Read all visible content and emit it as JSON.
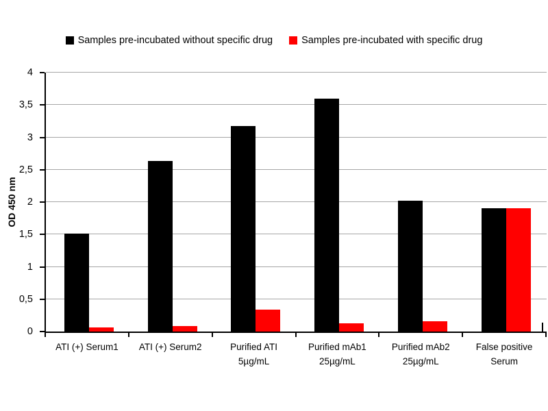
{
  "chart_data": {
    "type": "bar",
    "title": "",
    "xlabel": "",
    "ylabel": "OD 450 nm",
    "ylim": [
      0,
      4
    ],
    "grid": true,
    "legend_position": "top-center",
    "axis_color": "#000000",
    "gridline_color": "#a6a6a6",
    "background_color": "#ffffff",
    "y_ticks": [
      {
        "v": 0,
        "label": "0"
      },
      {
        "v": 0.5,
        "label": "0,5"
      },
      {
        "v": 1,
        "label": "1"
      },
      {
        "v": 1.5,
        "label": "1,5"
      },
      {
        "v": 2,
        "label": "2"
      },
      {
        "v": 2.5,
        "label": "2,5"
      },
      {
        "v": 3,
        "label": "3"
      },
      {
        "v": 3.5,
        "label": "3,5"
      },
      {
        "v": 4,
        "label": "4"
      }
    ],
    "categories": [
      "ATI (+) Serum1",
      "ATI (+) Serum2",
      "Purified ATI\n5µg/mL",
      "Purified mAb1\n25µg/mL",
      "Purified mAb2\n25µg/mL",
      "False positive\nSerum"
    ],
    "series": [
      {
        "name": "Samples pre-incubated without specific drug",
        "color": "#000000",
        "values": [
          1.51,
          2.63,
          3.17,
          3.6,
          2.02,
          1.91
        ]
      },
      {
        "name": "Samples pre-incubated with specific drug",
        "color": "#ff0000",
        "values": [
          0.06,
          0.08,
          0.34,
          0.13,
          0.16,
          1.91
        ]
      }
    ]
  }
}
